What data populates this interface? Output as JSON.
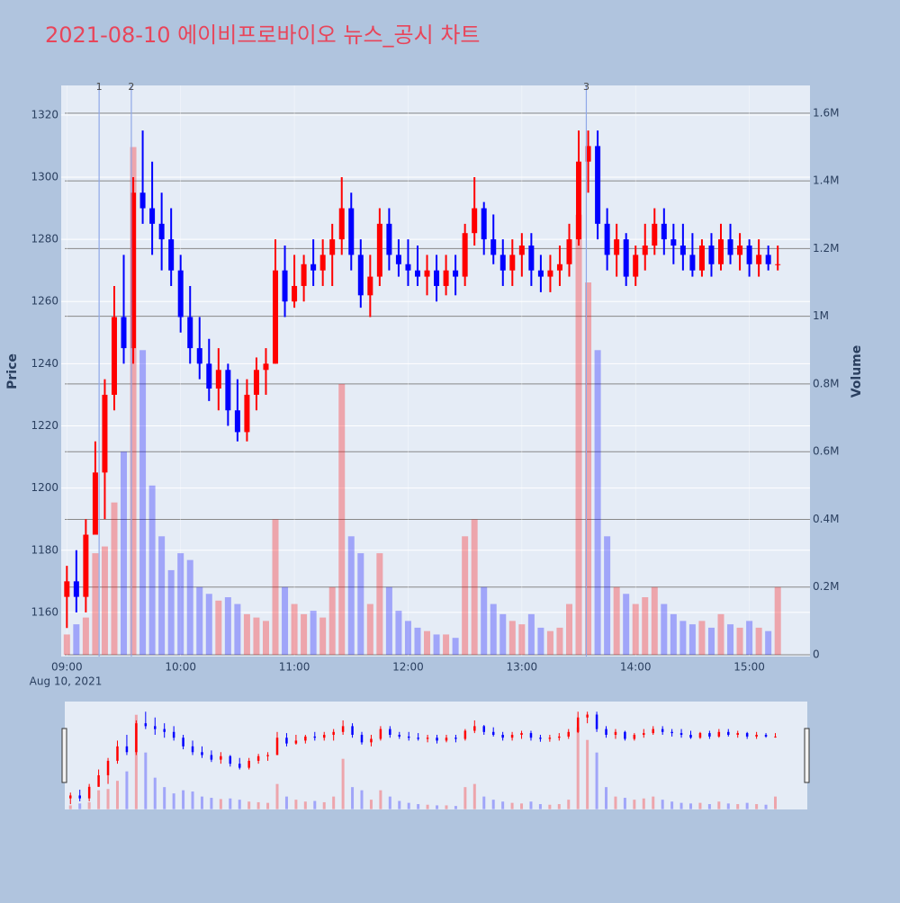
{
  "chart_data": {
    "type": "candlestick",
    "title": "2021-08-10 에이비프로바이오 뉴스_공시 차트",
    "y_title": "Price",
    "y2_title": "Volume",
    "x_date_label": "Aug 10, 2021",
    "increasing_color": "#ff0000",
    "decreasing_color": "#0000ff",
    "volume_increasing_color": "rgba(255,0,0,0.3)",
    "volume_decreasing_color": "rgba(0,0,255,0.3)",
    "grid": true,
    "range_slider": true,
    "xlim": [
      "2021-08-10 08:57",
      "2021-08-10 15:32"
    ],
    "xticks": [
      {
        "value": "2021-08-10 09:00",
        "label": "09:00"
      },
      {
        "value": "2021-08-10 10:00",
        "label": "10:00"
      },
      {
        "value": "2021-08-10 11:00",
        "label": "11:00"
      },
      {
        "value": "2021-08-10 12:00",
        "label": "12:00"
      },
      {
        "value": "2021-08-10 13:00",
        "label": "13:00"
      },
      {
        "value": "2021-08-10 14:00",
        "label": "14:00"
      },
      {
        "value": "2021-08-10 15:00",
        "label": "15:00"
      }
    ],
    "ylim": [
      1145.8,
      1329.5
    ],
    "yticks": [
      1160,
      1180,
      1200,
      1220,
      1240,
      1260,
      1280,
      1300,
      1320
    ],
    "y2lim": [
      -5300,
      1682000
    ],
    "y2ticks": [
      0,
      {
        "value": 200000,
        "label": "0.2M"
      },
      {
        "value": 400000,
        "label": "0.4M"
      },
      {
        "value": 600000,
        "label": "0.6M"
      },
      {
        "value": 800000,
        "label": "0.8M"
      },
      {
        "value": 1000000,
        "label": "1M"
      },
      {
        "value": 1200000,
        "label": "1.2M"
      },
      {
        "value": 1400000,
        "label": "1.4M"
      },
      {
        "value": 1600000,
        "label": "1.6M"
      }
    ],
    "news": [
      {
        "x": "2021-08-10 09:17",
        "label": "1"
      },
      {
        "x": "2021-08-10 09:34",
        "label": "2"
      },
      {
        "x": "2021-08-10 13:34",
        "label": "3"
      }
    ],
    "x": [
      "2021-08-10 09:00",
      "2021-08-10 09:05",
      "2021-08-10 09:10",
      "2021-08-10 09:15",
      "2021-08-10 09:20",
      "2021-08-10 09:25",
      "2021-08-10 09:30",
      "2021-08-10 09:35",
      "2021-08-10 09:40",
      "2021-08-10 09:45",
      "2021-08-10 09:50",
      "2021-08-10 09:55",
      "2021-08-10 10:00",
      "2021-08-10 10:05",
      "2021-08-10 10:10",
      "2021-08-10 10:15",
      "2021-08-10 10:20",
      "2021-08-10 10:25",
      "2021-08-10 10:30",
      "2021-08-10 10:35",
      "2021-08-10 10:40",
      "2021-08-10 10:45",
      "2021-08-10 10:50",
      "2021-08-10 10:55",
      "2021-08-10 11:00",
      "2021-08-10 11:05",
      "2021-08-10 11:10",
      "2021-08-10 11:15",
      "2021-08-10 11:20",
      "2021-08-10 11:25",
      "2021-08-10 11:30",
      "2021-08-10 11:35",
      "2021-08-10 11:40",
      "2021-08-10 11:45",
      "2021-08-10 11:50",
      "2021-08-10 11:55",
      "2021-08-10 12:00",
      "2021-08-10 12:05",
      "2021-08-10 12:10",
      "2021-08-10 12:15",
      "2021-08-10 12:20",
      "2021-08-10 12:25",
      "2021-08-10 12:30",
      "2021-08-10 12:35",
      "2021-08-10 12:40",
      "2021-08-10 12:45",
      "2021-08-10 12:50",
      "2021-08-10 12:55",
      "2021-08-10 13:00",
      "2021-08-10 13:05",
      "2021-08-10 13:10",
      "2021-08-10 13:15",
      "2021-08-10 13:20",
      "2021-08-10 13:25",
      "2021-08-10 13:30",
      "2021-08-10 13:35",
      "2021-08-10 13:40",
      "2021-08-10 13:45",
      "2021-08-10 13:50",
      "2021-08-10 13:55",
      "2021-08-10 14:00",
      "2021-08-10 14:05",
      "2021-08-10 14:10",
      "2021-08-10 14:15",
      "2021-08-10 14:20",
      "2021-08-10 14:25",
      "2021-08-10 14:30",
      "2021-08-10 14:35",
      "2021-08-10 14:40",
      "2021-08-10 14:45",
      "2021-08-10 14:50",
      "2021-08-10 14:55",
      "2021-08-10 15:00",
      "2021-08-10 15:05",
      "2021-08-10 15:10",
      "2021-08-10 15:15"
    ],
    "open": [
      1165,
      1170,
      1165,
      1185,
      1205,
      1230,
      1255,
      1245,
      1295,
      1290,
      1285,
      1280,
      1270,
      1255,
      1245,
      1240,
      1232,
      1238,
      1225,
      1218,
      1230,
      1238,
      1240,
      1270,
      1260,
      1265,
      1272,
      1270,
      1275,
      1280,
      1290,
      1275,
      1262,
      1268,
      1285,
      1275,
      1272,
      1270,
      1268,
      1270,
      1265,
      1270,
      1268,
      1282,
      1290,
      1280,
      1275,
      1270,
      1275,
      1278,
      1270,
      1268,
      1270,
      1272,
      1280,
      1305,
      1310,
      1285,
      1275,
      1280,
      1268,
      1275,
      1278,
      1285,
      1280,
      1278,
      1275,
      1270,
      1278,
      1272,
      1280,
      1275,
      1278,
      1272,
      1275,
      1272
    ],
    "high": [
      1175,
      1180,
      1190,
      1215,
      1235,
      1265,
      1275,
      1300,
      1315,
      1305,
      1295,
      1290,
      1275,
      1265,
      1255,
      1248,
      1245,
      1240,
      1235,
      1235,
      1242,
      1245,
      1280,
      1278,
      1275,
      1275,
      1280,
      1280,
      1285,
      1300,
      1295,
      1280,
      1275,
      1290,
      1290,
      1280,
      1280,
      1278,
      1275,
      1275,
      1275,
      1275,
      1285,
      1300,
      1292,
      1288,
      1280,
      1280,
      1282,
      1282,
      1275,
      1275,
      1278,
      1285,
      1315,
      1315,
      1315,
      1290,
      1285,
      1282,
      1278,
      1285,
      1290,
      1290,
      1285,
      1285,
      1282,
      1280,
      1282,
      1285,
      1285,
      1282,
      1280,
      1280,
      1278,
      1278
    ],
    "low": [
      1155,
      1160,
      1160,
      1185,
      1190,
      1225,
      1240,
      1240,
      1285,
      1275,
      1270,
      1265,
      1250,
      1240,
      1235,
      1228,
      1225,
      1220,
      1215,
      1215,
      1225,
      1230,
      1240,
      1255,
      1258,
      1260,
      1265,
      1265,
      1265,
      1275,
      1270,
      1258,
      1255,
      1265,
      1270,
      1268,
      1265,
      1265,
      1262,
      1260,
      1262,
      1262,
      1265,
      1278,
      1275,
      1272,
      1265,
      1265,
      1268,
      1265,
      1263,
      1263,
      1265,
      1268,
      1278,
      1295,
      1280,
      1270,
      1268,
      1265,
      1265,
      1270,
      1275,
      1275,
      1272,
      1270,
      1268,
      1268,
      1268,
      1270,
      1272,
      1270,
      1268,
      1268,
      1270,
      1270
    ],
    "close": [
      1170,
      1165,
      1185,
      1205,
      1230,
      1255,
      1245,
      1295,
      1290,
      1285,
      1280,
      1270,
      1255,
      1245,
      1240,
      1232,
      1238,
      1225,
      1218,
      1230,
      1238,
      1240,
      1270,
      1260,
      1265,
      1272,
      1270,
      1275,
      1280,
      1290,
      1275,
      1262,
      1268,
      1285,
      1275,
      1272,
      1270,
      1268,
      1270,
      1265,
      1270,
      1268,
      1282,
      1290,
      1280,
      1275,
      1270,
      1275,
      1278,
      1270,
      1268,
      1270,
      1272,
      1280,
      1305,
      1310,
      1285,
      1275,
      1280,
      1268,
      1275,
      1278,
      1285,
      1280,
      1278,
      1275,
      1270,
      1278,
      1272,
      1280,
      1275,
      1278,
      1272,
      1275,
      1272,
      1272
    ],
    "volume": [
      60000,
      90000,
      110000,
      300000,
      320000,
      450000,
      600000,
      1500000,
      900000,
      500000,
      350000,
      250000,
      300000,
      280000,
      200000,
      180000,
      160000,
      170000,
      150000,
      120000,
      110000,
      100000,
      400000,
      200000,
      150000,
      120000,
      130000,
      110000,
      200000,
      800000,
      350000,
      300000,
      150000,
      300000,
      200000,
      130000,
      100000,
      80000,
      70000,
      60000,
      60000,
      50000,
      350000,
      400000,
      200000,
      150000,
      120000,
      100000,
      90000,
      120000,
      80000,
      70000,
      80000,
      150000,
      1300000,
      1100000,
      900000,
      350000,
      200000,
      180000,
      150000,
      170000,
      200000,
      150000,
      120000,
      100000,
      90000,
      100000,
      80000,
      120000,
      90000,
      80000,
      100000,
      80000,
      70000,
      200000
    ]
  }
}
